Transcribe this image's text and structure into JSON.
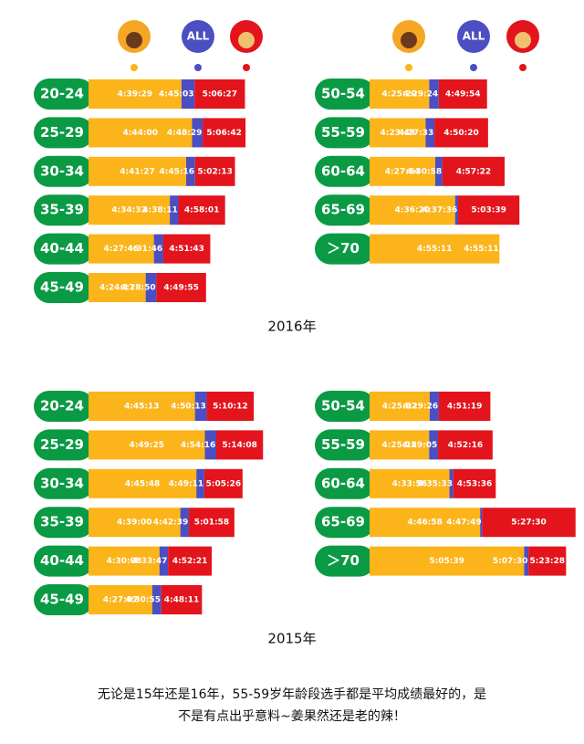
{
  "legend": {
    "all": "ALL"
  },
  "years": [
    "2016年",
    "2015年"
  ],
  "panels": [
    {
      "rows": [
        {
          "label": "20-24",
          "times": [
            "4:39:29",
            "4:45:03",
            "5:06:27"
          ]
        },
        {
          "label": "25-29",
          "times": [
            "4:44:00",
            "4:48:29",
            "5:06:42"
          ]
        },
        {
          "label": "30-34",
          "times": [
            "4:41:27",
            "4:45:16",
            "5:02:13"
          ]
        },
        {
          "label": "35-39",
          "times": [
            "4:34:32",
            "4:38:11",
            "4:58:01"
          ]
        },
        {
          "label": "40-44",
          "times": [
            "4:27:46",
            "4:31:46",
            "4:51:43"
          ]
        },
        {
          "label": "45-49",
          "times": [
            "4:24:17",
            "4:28:50",
            "4:49:55"
          ]
        }
      ]
    },
    {
      "rows": [
        {
          "label": "50-54",
          "times": [
            "4:25:20",
            "4:29:24",
            "4:49:54"
          ]
        },
        {
          "label": "55-59",
          "times": [
            "4:23:49",
            "4:27:33",
            "4:50:20"
          ]
        },
        {
          "label": "60-64",
          "times": [
            "4:27:54",
            "4:30:58",
            "4:57:22"
          ]
        },
        {
          "label": "65-69",
          "times": [
            "4:36:20",
            "4:37:36",
            "5:03:39"
          ]
        },
        {
          "label": "＞70",
          "times": [
            "4:55:11",
            "4:55:11"
          ]
        }
      ]
    },
    {
      "rows": [
        {
          "label": "20-24",
          "times": [
            "4:45:13",
            "4:50:13",
            "5:10:12"
          ]
        },
        {
          "label": "25-29",
          "times": [
            "4:49:25",
            "4:54:16",
            "5:14:08"
          ]
        },
        {
          "label": "30-34",
          "times": [
            "4:45:48",
            "4:49:11",
            "5:05:26"
          ]
        },
        {
          "label": "35-39",
          "times": [
            "4:39:00",
            "4:42:39",
            "5:01:58"
          ]
        },
        {
          "label": "40-44",
          "times": [
            "4:30:08",
            "4:33:47",
            "4:52:21"
          ]
        },
        {
          "label": "45-49",
          "times": [
            "4:27:07",
            "4:30:55",
            "4:48:11"
          ]
        }
      ]
    },
    {
      "rows": [
        {
          "label": "50-54",
          "times": [
            "4:25:32",
            "4:29:26",
            "4:51:19"
          ]
        },
        {
          "label": "55-59",
          "times": [
            "4:25:18",
            "4:29:05",
            "4:52:16"
          ]
        },
        {
          "label": "60-64",
          "times": [
            "4:33:56",
            "4:35:33",
            "4:53:36"
          ]
        },
        {
          "label": "65-69",
          "times": [
            "4:46:58",
            "4:47:49",
            "5:27:30"
          ]
        },
        {
          "label": "＞70",
          "times": [
            "5:05:39",
            "5:07:30",
            "5:23:28"
          ]
        }
      ]
    }
  ],
  "footer": [
    "无论是15年还是16年，55-59岁年龄段选手都是平均成绩最好的，是",
    "不是有点出乎意料~姜果然还是老的辣！"
  ]
}
